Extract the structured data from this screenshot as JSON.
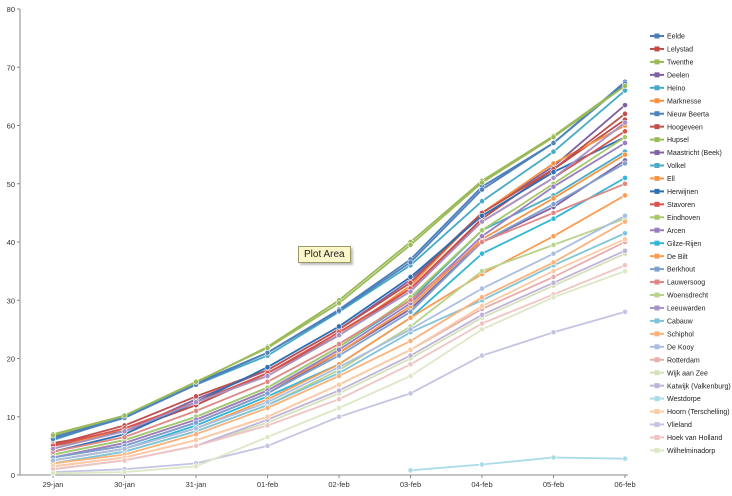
{
  "tooltip": "Plot Area",
  "chart_data": {
    "type": "line",
    "x": [
      "29-jan",
      "30-jan",
      "31-jan",
      "01-feb",
      "02-feb",
      "03-feb",
      "04-feb",
      "05-feb",
      "06-feb"
    ],
    "ylim": [
      0,
      80
    ],
    "yticks": [
      0,
      10,
      20,
      30,
      40,
      50,
      60,
      70,
      80
    ],
    "grid": false,
    "legend_position": "right",
    "series": [
      {
        "name": "Eelde",
        "color": "#4a7ebb",
        "values": [
          6.5,
          10,
          15.8,
          21,
          28.4,
          37,
          49.5,
          57,
          67.5
        ]
      },
      {
        "name": "Lelystad",
        "color": "#be4b48",
        "values": [
          5.5,
          7.5,
          12,
          17.5,
          24,
          32,
          44,
          52.5,
          61
        ]
      },
      {
        "name": "Twenthe",
        "color": "#98b954",
        "values": [
          7,
          10.2,
          15.9,
          22,
          30,
          40,
          50.5,
          58.2,
          67
        ]
      },
      {
        "name": "Deelen",
        "color": "#7d60a0",
        "values": [
          5,
          7.5,
          13,
          18,
          25,
          33.5,
          45,
          53,
          63.5
        ]
      },
      {
        "name": "Heino",
        "color": "#46aac5",
        "values": [
          6,
          10,
          15.5,
          20.5,
          28,
          36,
          47,
          55.5,
          66
        ]
      },
      {
        "name": "Marknesse",
        "color": "#f69240",
        "values": [
          4.5,
          8,
          12.5,
          17,
          24,
          32.5,
          45,
          53.5,
          60
        ]
      },
      {
        "name": "Nieuw Beerta",
        "color": "#4f81bd",
        "values": [
          6.2,
          9.8,
          15.5,
          21,
          28.2,
          36.5,
          49,
          57,
          67.2
        ]
      },
      {
        "name": "Hoogeveen",
        "color": "#c0504d",
        "values": [
          5.2,
          8.5,
          13.5,
          18,
          25,
          33,
          45,
          52.5,
          62
        ]
      },
      {
        "name": "Hupsel",
        "color": "#9bbb59",
        "values": [
          6.8,
          10.2,
          16,
          21.8,
          29.5,
          39.5,
          50.2,
          58,
          66.8
        ]
      },
      {
        "name": "Maastricht (Beek)",
        "color": "#8064a2",
        "values": [
          3,
          5,
          9,
          14,
          21,
          28.5,
          40,
          46,
          54
        ]
      },
      {
        "name": "Volkel",
        "color": "#4bacc6",
        "values": [
          3.5,
          6,
          10,
          15,
          22,
          30,
          42,
          48,
          55.5
        ]
      },
      {
        "name": "Ell",
        "color": "#f79646",
        "values": [
          3,
          5.5,
          9.5,
          14.5,
          21,
          29,
          40.5,
          47.5,
          55
        ]
      },
      {
        "name": "Herwijnen",
        "color": "#2c6fb3",
        "values": [
          4,
          7,
          12.5,
          18.5,
          25.5,
          34,
          44.5,
          52,
          58
        ]
      },
      {
        "name": "Stavoren",
        "color": "#d9534f",
        "values": [
          5,
          8,
          12.5,
          17.5,
          24.5,
          32,
          43.5,
          51,
          59
        ]
      },
      {
        "name": "Eindhoven",
        "color": "#a6c96a",
        "values": [
          3.5,
          6,
          10,
          15,
          22,
          30.5,
          42,
          50,
          58
        ]
      },
      {
        "name": "Arcen",
        "color": "#9a7fc0",
        "values": [
          3,
          5.5,
          9.5,
          14.5,
          21.5,
          29.5,
          41,
          49.5,
          57
        ]
      },
      {
        "name": "Gilze-Rijen",
        "color": "#31b6d8",
        "values": [
          2.5,
          4.5,
          8.5,
          13.5,
          19,
          27,
          38,
          44,
          51
        ]
      },
      {
        "name": "De Bilt",
        "color": "#fa9d53",
        "values": [
          2.5,
          4.5,
          8,
          13,
          19,
          27,
          34.5,
          41,
          48
        ]
      },
      {
        "name": "Berkhout",
        "color": "#7fa0cf",
        "values": [
          3,
          5,
          9,
          14,
          20.5,
          28,
          40,
          46.5,
          53.5
        ]
      },
      {
        "name": "Lauwersoog",
        "color": "#e08784",
        "values": [
          4,
          6.5,
          11,
          16,
          22.5,
          30,
          40,
          45,
          50
        ]
      },
      {
        "name": "Woensdrecht",
        "color": "#b9d38c",
        "values": [
          2,
          4,
          7.5,
          12,
          18,
          25.5,
          35,
          39.5,
          44
        ]
      },
      {
        "name": "Leeuwarden",
        "color": "#a592c6",
        "values": [
          4.5,
          7.5,
          12.5,
          17,
          24,
          31.5,
          43.5,
          51,
          60.5
        ]
      },
      {
        "name": "Cabauw",
        "color": "#7fc4d8",
        "values": [
          2,
          4,
          7.5,
          12,
          17.5,
          24.5,
          30,
          36,
          41.5
        ]
      },
      {
        "name": "Schiphol",
        "color": "#fbb17a",
        "values": [
          2,
          3.5,
          7,
          11.5,
          17,
          23,
          30.5,
          36.5,
          43.5
        ]
      },
      {
        "name": "De Kooy",
        "color": "#a9bee0",
        "values": [
          2.5,
          4.5,
          8,
          12.5,
          18.5,
          25,
          32,
          38,
          44.5
        ]
      },
      {
        "name": "Rotterdam",
        "color": "#e6aeac",
        "values": [
          1.5,
          3,
          6,
          10,
          15.5,
          21.5,
          28.5,
          34,
          40
        ]
      },
      {
        "name": "Wijk aan Zee",
        "color": "#d4e2b9",
        "values": [
          1,
          2.5,
          5,
          9,
          14,
          20,
          27,
          32.5,
          38
        ]
      },
      {
        "name": "Katwijk (Valkenburg)",
        "color": "#c0b3d8",
        "values": [
          1,
          2.5,
          5,
          9.5,
          14.5,
          20.5,
          27.5,
          33,
          38.5
        ]
      },
      {
        "name": "Westdorpe",
        "color": "#a9dbe9",
        "values": [
          null,
          null,
          null,
          null,
          null,
          0.8,
          1.8,
          3,
          2.8
        ]
      },
      {
        "name": "Hoorn (Terschelling)",
        "color": "#fccba6",
        "values": [
          1.5,
          3,
          6,
          10,
          15.5,
          21.5,
          29,
          35,
          40.5
        ]
      },
      {
        "name": "Vlieland",
        "color": "#c4c4e4",
        "values": [
          0.5,
          1,
          2,
          5,
          10,
          14,
          20.5,
          24.5,
          28
        ]
      },
      {
        "name": "Hoek van Holland",
        "color": "#f0c4c2",
        "values": [
          1,
          2.5,
          5,
          8.5,
          13,
          19,
          26,
          31,
          36
        ]
      },
      {
        "name": "Wilhelminadorp",
        "color": "#dde8c7",
        "values": [
          0.3,
          0.5,
          1.5,
          6.5,
          11.5,
          17,
          25,
          30.5,
          35
        ]
      }
    ]
  }
}
